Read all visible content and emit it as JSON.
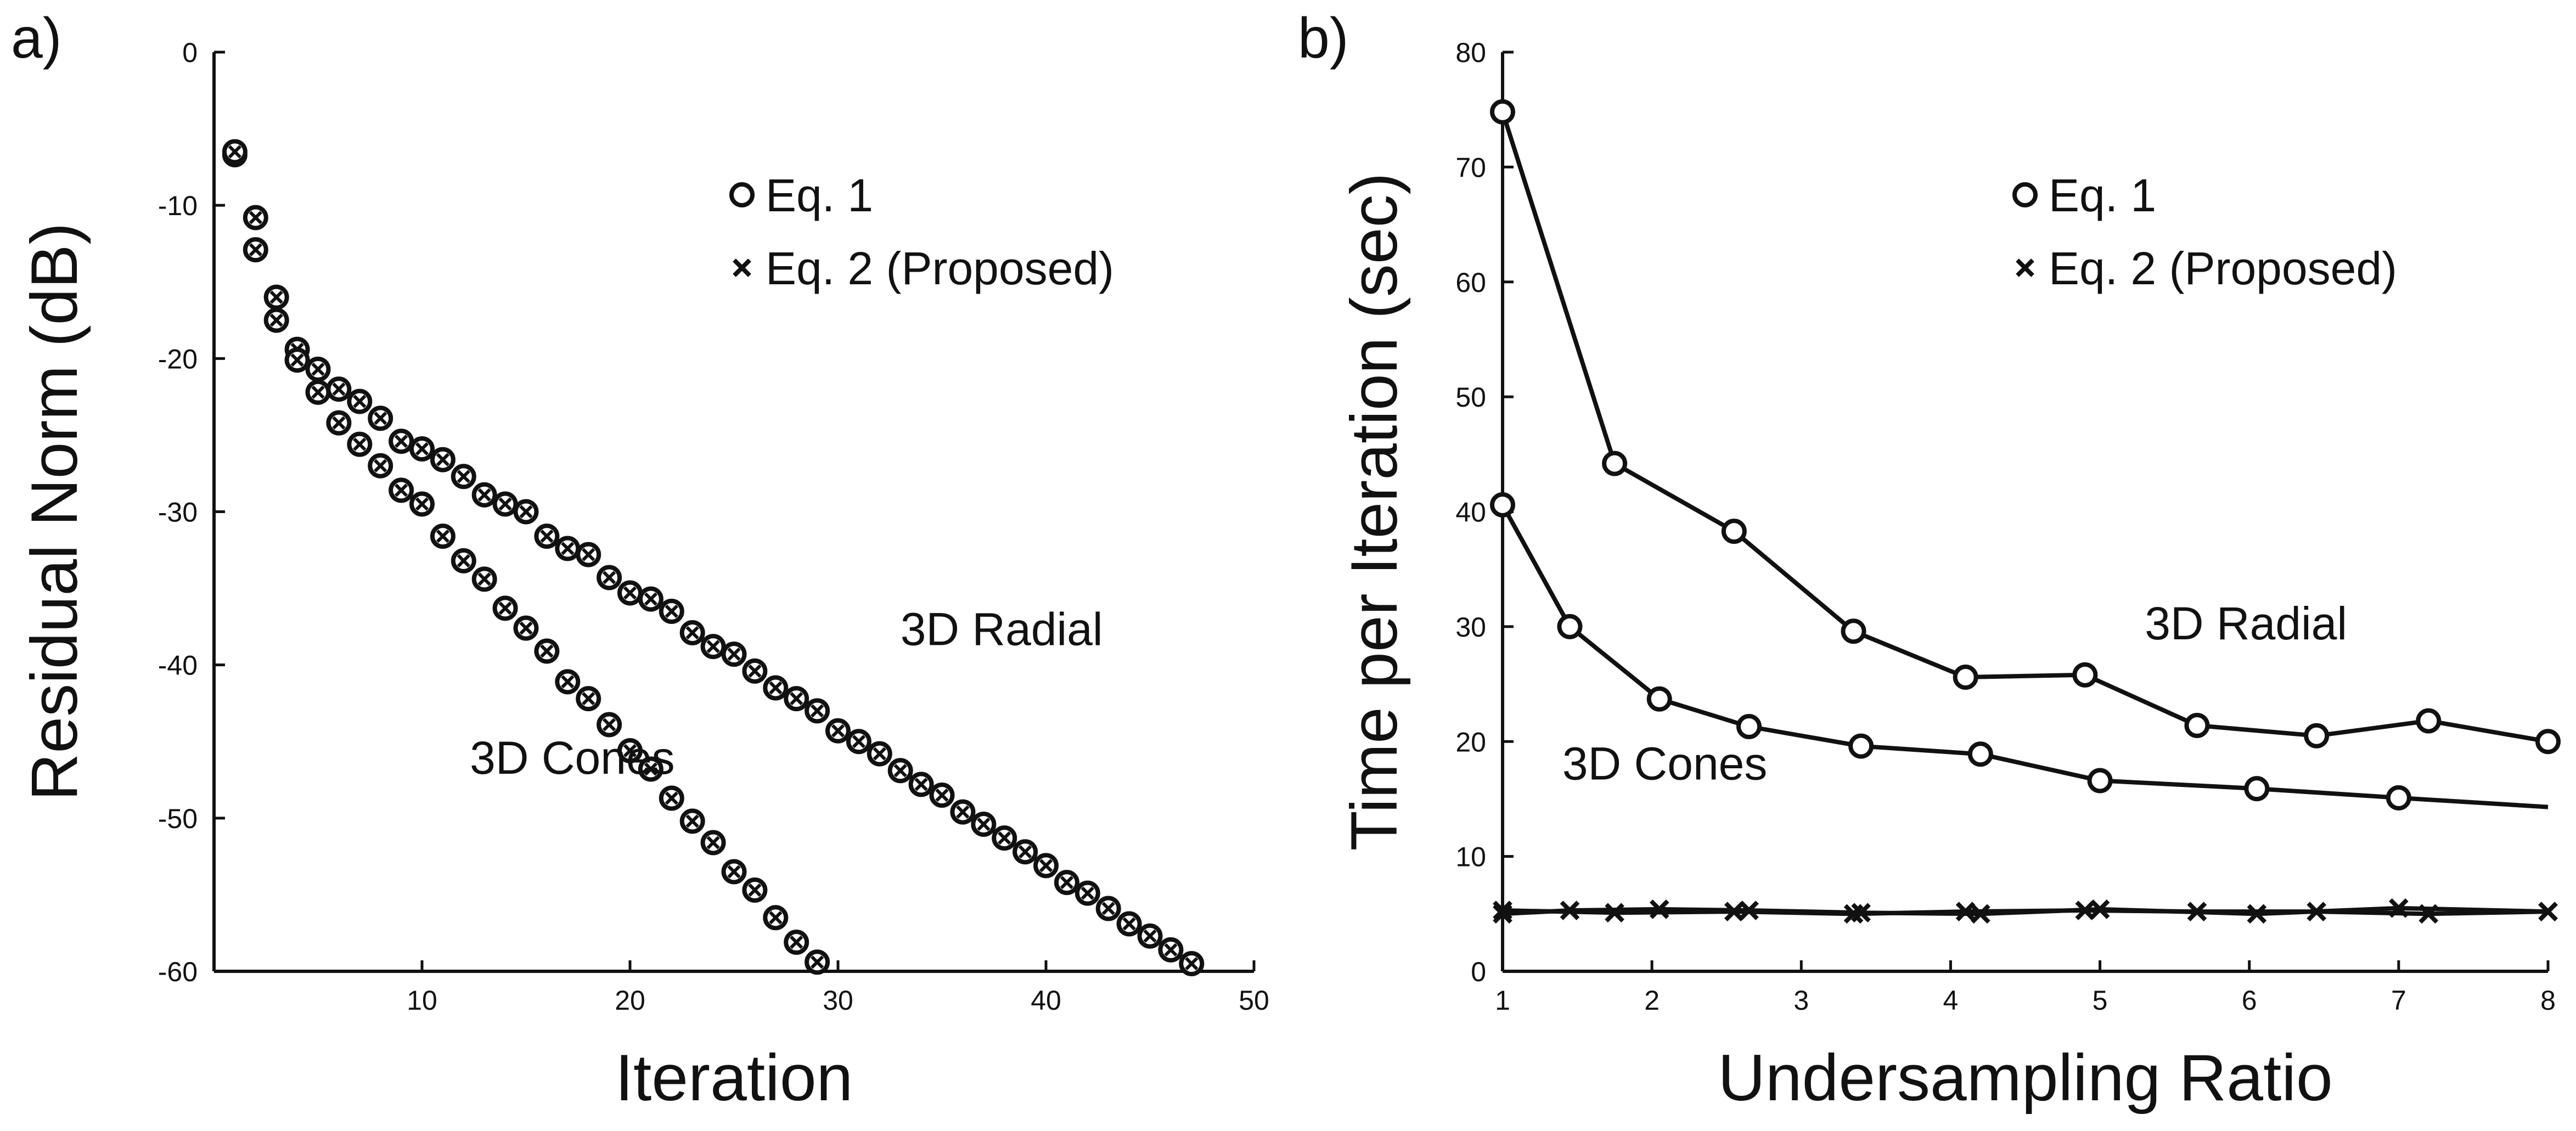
{
  "colors": {
    "ink": "#111111",
    "background": "#ffffff"
  },
  "chart_data": [
    {
      "panel_label": "a)",
      "type": "scatter",
      "xlabel": "Iteration",
      "ylabel": "Residual Norm (dB)",
      "xlim": [
        0,
        50
      ],
      "ylim": [
        -60,
        0
      ],
      "xticks": [
        10,
        20,
        30,
        40,
        50
      ],
      "yticks": [
        0,
        -10,
        -20,
        -30,
        -40,
        -50,
        -60
      ],
      "legend": {
        "position": "top-right",
        "entries": [
          {
            "marker": "circle",
            "label": "Eq. 1"
          },
          {
            "marker": "cross",
            "label": "Eq. 2 (Proposed)"
          }
        ]
      },
      "annotations": [
        {
          "text": "3D Radial",
          "x": 33,
          "y": -38.7
        },
        {
          "text": "3D Cones",
          "x": 12.3,
          "y": -47.1
        }
      ],
      "series": [
        {
          "name": "3D Radial",
          "marker": "circle-cross",
          "x": [
            1,
            2,
            3,
            4,
            5,
            6,
            7,
            8,
            9,
            10,
            11,
            12,
            13,
            14,
            15,
            16,
            17,
            18,
            19,
            20,
            21,
            22,
            23,
            24,
            25,
            26,
            27,
            28,
            29,
            30,
            31,
            32,
            33,
            34,
            35,
            36,
            37,
            38,
            39,
            40,
            41,
            42,
            43,
            44,
            45,
            46,
            47
          ],
          "y": [
            -6.7,
            -10.8,
            -16.0,
            -19.4,
            -20.7,
            -22.0,
            -22.8,
            -23.9,
            -25.4,
            -25.9,
            -26.6,
            -27.7,
            -28.9,
            -29.5,
            -30.0,
            -31.6,
            -32.4,
            -32.8,
            -34.3,
            -35.3,
            -35.7,
            -36.5,
            -37.9,
            -38.8,
            -39.3,
            -40.4,
            -41.5,
            -42.2,
            -43.0,
            -44.3,
            -45.0,
            -45.8,
            -46.9,
            -47.8,
            -48.5,
            -49.6,
            -50.4,
            -51.3,
            -52.2,
            -53.1,
            -54.2,
            -54.9,
            -55.9,
            -56.9,
            -57.7,
            -58.6,
            -59.5
          ]
        },
        {
          "name": "3D Cones",
          "marker": "circle-cross",
          "x": [
            1,
            2,
            3,
            4,
            5,
            6,
            7,
            8,
            9,
            10,
            11,
            12,
            13,
            14,
            15,
            16,
            17,
            18,
            19,
            20,
            21,
            22,
            23,
            24,
            25,
            26,
            27,
            28,
            29
          ],
          "y": [
            -6.5,
            -12.9,
            -17.5,
            -20.1,
            -22.2,
            -24.2,
            -25.6,
            -27.0,
            -28.6,
            -29.5,
            -31.6,
            -33.2,
            -34.4,
            -36.3,
            -37.6,
            -39.1,
            -41.1,
            -42.2,
            -43.9,
            -45.6,
            -46.8,
            -48.7,
            -50.2,
            -51.6,
            -53.5,
            -54.7,
            -56.5,
            -58.1,
            -59.4
          ]
        }
      ]
    },
    {
      "panel_label": "b)",
      "type": "line",
      "xlabel": "Undersampling Ratio",
      "ylabel": "Time per Iteration (sec)",
      "xlim": [
        1,
        8
      ],
      "ylim": [
        0,
        80
      ],
      "xticks": [
        1,
        2,
        3,
        4,
        5,
        6,
        7,
        8
      ],
      "yticks": [
        0,
        10,
        20,
        30,
        40,
        50,
        60,
        70,
        80
      ],
      "legend": {
        "position": "top-right",
        "entries": [
          {
            "marker": "circle",
            "label": "Eq. 1"
          },
          {
            "marker": "cross",
            "label": "Eq. 2 (Proposed)"
          }
        ]
      },
      "annotations": [
        {
          "text": "3D Radial",
          "x": 5.3,
          "y": 28.9
        },
        {
          "text": "3D Cones",
          "x": 1.4,
          "y": 16.7
        }
      ],
      "series": [
        {
          "name": "3D Radial (Eq. 1)",
          "marker": "circle",
          "x": [
            1.0,
            1.75,
            2.55,
            3.35,
            4.1,
            4.9,
            5.65,
            6.45,
            7.2,
            8.0
          ],
          "y": [
            74.8,
            44.2,
            38.3,
            29.6,
            25.6,
            25.8,
            21.4,
            20.5,
            21.8,
            20.0
          ]
        },
        {
          "name": "3D Cones (Eq. 1)",
          "marker": "circle",
          "x": [
            1.0,
            1.45,
            2.05,
            2.65,
            3.4,
            4.2,
            5.0,
            6.05,
            7.0,
            8.0
          ],
          "y": [
            40.6,
            30.0,
            23.7,
            21.3,
            19.6,
            18.9,
            16.6,
            15.9,
            15.1,
            14.3
          ],
          "last_marker": false
        },
        {
          "name": "3D Radial (Eq. 2)",
          "marker": "cross",
          "x": [
            1.0,
            1.75,
            2.55,
            3.35,
            4.1,
            4.9,
            5.65,
            6.45,
            7.2,
            8.0
          ],
          "y": [
            5.3,
            5.1,
            5.2,
            5.0,
            5.2,
            5.3,
            5.2,
            5.2,
            5.0,
            5.2
          ]
        },
        {
          "name": "3D Cones (Eq. 2)",
          "marker": "cross",
          "x": [
            1.0,
            1.45,
            2.05,
            2.65,
            3.4,
            4.2,
            5.0,
            6.05,
            7.0,
            8.0
          ],
          "y": [
            5.0,
            5.3,
            5.4,
            5.3,
            5.1,
            5.0,
            5.4,
            5.0,
            5.5,
            5.2
          ]
        }
      ]
    }
  ]
}
